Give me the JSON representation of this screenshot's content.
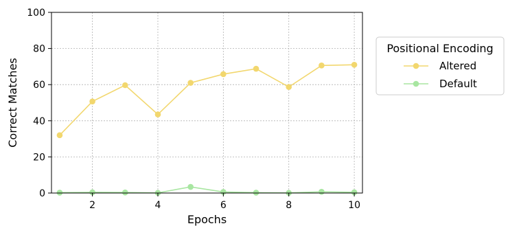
{
  "chart_data": {
    "type": "line",
    "title": "",
    "xlabel": "Epochs",
    "ylabel": "Correct Matches",
    "x": [
      1,
      2,
      3,
      4,
      5,
      6,
      7,
      8,
      9,
      10
    ],
    "xlim": [
      0.75,
      10.25
    ],
    "ylim": [
      0,
      100
    ],
    "xticks": [
      2,
      4,
      6,
      8,
      10
    ],
    "yticks": [
      0,
      20,
      40,
      60,
      80,
      100
    ],
    "grid": true,
    "legend": {
      "title": "Positional Encoding",
      "placement": "outside-right"
    },
    "series": [
      {
        "name": "Altered",
        "color": "#f2d76e",
        "values": [
          32,
          50.7,
          59.7,
          43.5,
          61,
          65.8,
          68.8,
          58.7,
          70.6,
          71
        ]
      },
      {
        "name": "Default",
        "color": "#a8e6a1",
        "values": [
          0.2,
          0.4,
          0.3,
          0.1,
          3.4,
          0.6,
          0.2,
          0.1,
          0.7,
          0.4
        ]
      }
    ]
  }
}
